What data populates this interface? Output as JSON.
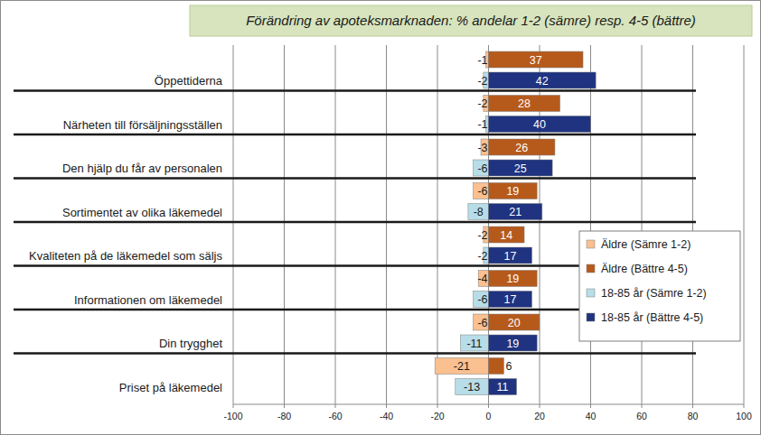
{
  "chart_data": {
    "type": "bar",
    "orientation": "horizontal",
    "title": "Förändring av apoteksmarknaden: % andelar 1-2 (sämre) resp. 4-5 (bättre)",
    "categories": [
      "Öppettiderna",
      "Närheten till försäljningsställen",
      "Den hjälp du får av personalen",
      "Sortimentet av olika läkemedel",
      "Kvaliteten på de läkemedel som säljs",
      "Informationen om läkemedel",
      "Din trygghet",
      "Priset på läkemedel"
    ],
    "series": [
      {
        "name": "Äldre (Sämre 1-2)",
        "color": "#fac090",
        "values": [
          -1,
          -2,
          -3,
          -6,
          -2,
          -4,
          -6,
          -21
        ]
      },
      {
        "name": "Äldre (Bättre 4-5)",
        "color": "#b65a1c",
        "values": [
          37,
          28,
          26,
          19,
          14,
          19,
          20,
          6
        ]
      },
      {
        "name": "18-85  år (Sämre 1-2)",
        "color": "#b7dde8",
        "values": [
          -2,
          -1,
          -6,
          -8,
          -2,
          -6,
          -11,
          -13
        ]
      },
      {
        "name": "18-85  år (Bättre 4-5)",
        "color": "#1f3380",
        "values": [
          42,
          40,
          25,
          21,
          17,
          17,
          19,
          11
        ]
      }
    ],
    "xlim": [
      -100,
      100
    ],
    "xticks": [
      -100,
      -80,
      -60,
      -40,
      -20,
      0,
      20,
      40,
      60,
      80,
      100
    ],
    "grid": true,
    "data_labels": true,
    "legend": "right"
  }
}
